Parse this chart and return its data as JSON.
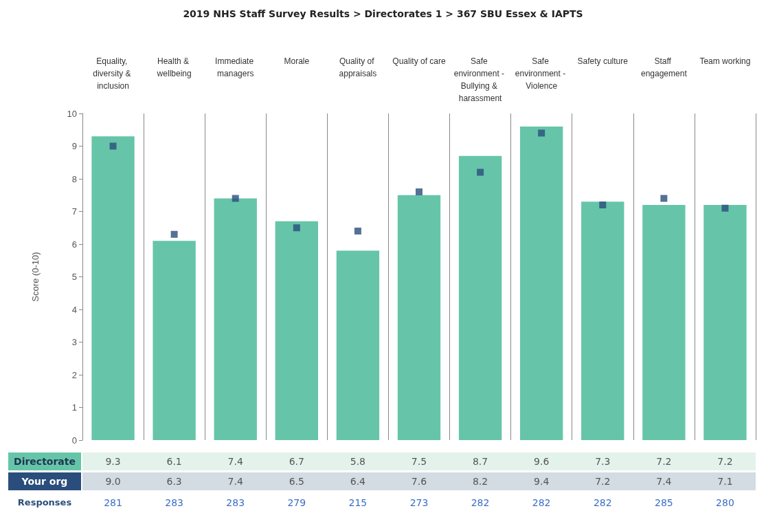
{
  "chart_data": {
    "type": "bar",
    "title": "2019 NHS Staff Survey Results > Directorates 1 > 367 SBU Essex & IAPTS",
    "ylabel": "Score (0-10)",
    "categories": [
      "Equality, diversity & inclusion",
      "Health & wellbeing",
      "Immediate managers",
      "Morale",
      "Quality of appraisals",
      "Quality of care",
      "Safe environment - Bullying & harassment",
      "Safe environment - Violence",
      "Safety culture",
      "Staff engagement",
      "Team working"
    ],
    "series": [
      {
        "name": "Directorate",
        "color": "#66c5a9",
        "values": [
          9.3,
          6.1,
          7.4,
          6.7,
          5.8,
          7.5,
          8.7,
          9.6,
          7.3,
          7.2,
          7.2
        ],
        "value_labels": [
          "9.3",
          "6.1",
          "7.4",
          "6.7",
          "5.8",
          "7.5",
          "8.7",
          "9.6",
          "7.3",
          "7.2",
          "7.2"
        ]
      },
      {
        "name": "Your org",
        "type": "scatter",
        "marker": "square",
        "color": "#2a4d7c",
        "values": [
          9.0,
          6.3,
          7.4,
          6.5,
          6.4,
          7.6,
          8.2,
          9.4,
          7.2,
          7.4,
          7.1
        ],
        "value_labels": [
          "9.0",
          "6.3",
          "7.4",
          "6.5",
          "6.4",
          "7.6",
          "8.2",
          "9.4",
          "7.2",
          "7.4",
          "7.1"
        ]
      }
    ],
    "ylim": [
      0,
      10
    ],
    "yticks": [
      0,
      1,
      2,
      3,
      4,
      5,
      6,
      7,
      8,
      9,
      10
    ],
    "grid": "x",
    "legend": false,
    "annotations": [
      "Responses",
      "281",
      "283",
      "283",
      "279",
      "215",
      "273",
      "282",
      "282",
      "282",
      "285",
      "280"
    ]
  }
}
